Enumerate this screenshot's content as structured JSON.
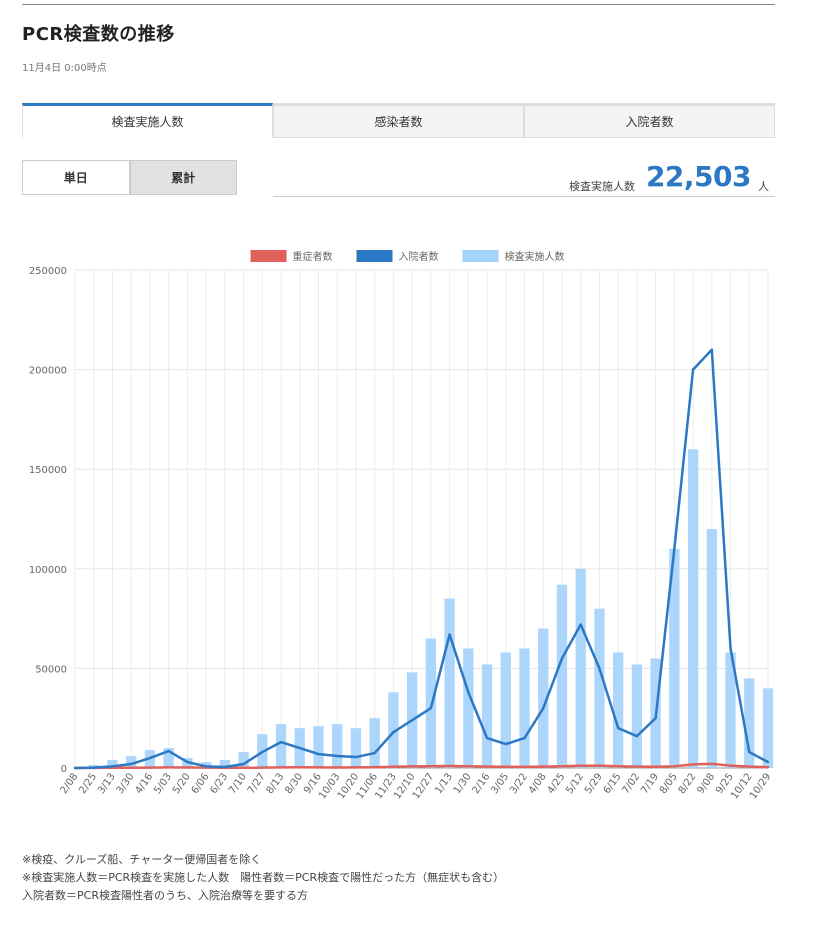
{
  "header": {
    "title": "PCR検査数の推移",
    "timestamp": "11月4日 0:00時点"
  },
  "tabs": [
    {
      "label": "検査実施人数",
      "active": true
    },
    {
      "label": "感染者数",
      "active": false
    },
    {
      "label": "入院者数",
      "active": false
    }
  ],
  "mode": {
    "daily_label": "単日",
    "cumulative_label": "累計",
    "active": "daily"
  },
  "summary": {
    "label": "検査実施人数",
    "value": "22,503",
    "unit": "人"
  },
  "chart_data": {
    "type": "line",
    "legend_position": "top-center",
    "grid": true,
    "ylim": [
      0,
      250000
    ],
    "y_ticks": [
      "0",
      "50000",
      "100000",
      "150000",
      "200000",
      "250000"
    ],
    "categories": [
      "2/08",
      "2/25",
      "3/13",
      "3/30",
      "4/16",
      "5/03",
      "5/20",
      "6/06",
      "6/23",
      "7/10",
      "7/27",
      "8/13",
      "8/30",
      "9/16",
      "10/03",
      "10/20",
      "11/06",
      "11/23",
      "12/10",
      "12/27",
      "1/13",
      "1/30",
      "2/16",
      "3/05",
      "3/22",
      "4/08",
      "4/25",
      "5/12",
      "5/29",
      "6/15",
      "7/02",
      "7/19",
      "8/05",
      "8/22",
      "9/08",
      "9/25",
      "10/12",
      "10/29"
    ],
    "series": [
      {
        "name": "重症者数",
        "type": "line",
        "color": "#e0605a",
        "values": [
          0,
          50,
          100,
          150,
          200,
          300,
          280,
          200,
          150,
          120,
          180,
          300,
          350,
          320,
          250,
          300,
          400,
          600,
          800,
          900,
          1000,
          900,
          700,
          600,
          550,
          700,
          900,
          1100,
          1200,
          900,
          700,
          600,
          800,
          1800,
          2100,
          1200,
          700,
          400
        ]
      },
      {
        "name": "入院者数",
        "type": "line",
        "color": "#2d78c4",
        "values": [
          0,
          200,
          800,
          2000,
          5000,
          8500,
          3000,
          800,
          500,
          2000,
          8000,
          13000,
          10000,
          7000,
          6000,
          5500,
          7500,
          18000,
          24000,
          30000,
          67000,
          38000,
          15000,
          12000,
          15000,
          30000,
          55000,
          72000,
          50000,
          20000,
          16000,
          25000,
          110000,
          200000,
          210000,
          60000,
          8000,
          3000
        ]
      },
      {
        "name": "検査実施人数",
        "type": "bar",
        "color": "#a3d2fb",
        "values": [
          0,
          1500,
          4000,
          6000,
          9000,
          10000,
          5000,
          3000,
          4000,
          8000,
          17000,
          22000,
          20000,
          21000,
          22000,
          20000,
          25000,
          38000,
          48000,
          65000,
          85000,
          60000,
          52000,
          58000,
          60000,
          70000,
          92000,
          100000,
          80000,
          58000,
          52000,
          55000,
          110000,
          160000,
          120000,
          58000,
          45000,
          40000
        ]
      }
    ]
  },
  "notes": [
    "※検疫、クルーズ船、チャーター便帰国者を除く",
    "※検査実施人数＝PCR検査を実施した人数　陽性者数＝PCR検査で陽性だった方（無症状も含む）",
    "入院者数＝PCR検査陽性者のうち、入院治療等を要する方"
  ]
}
